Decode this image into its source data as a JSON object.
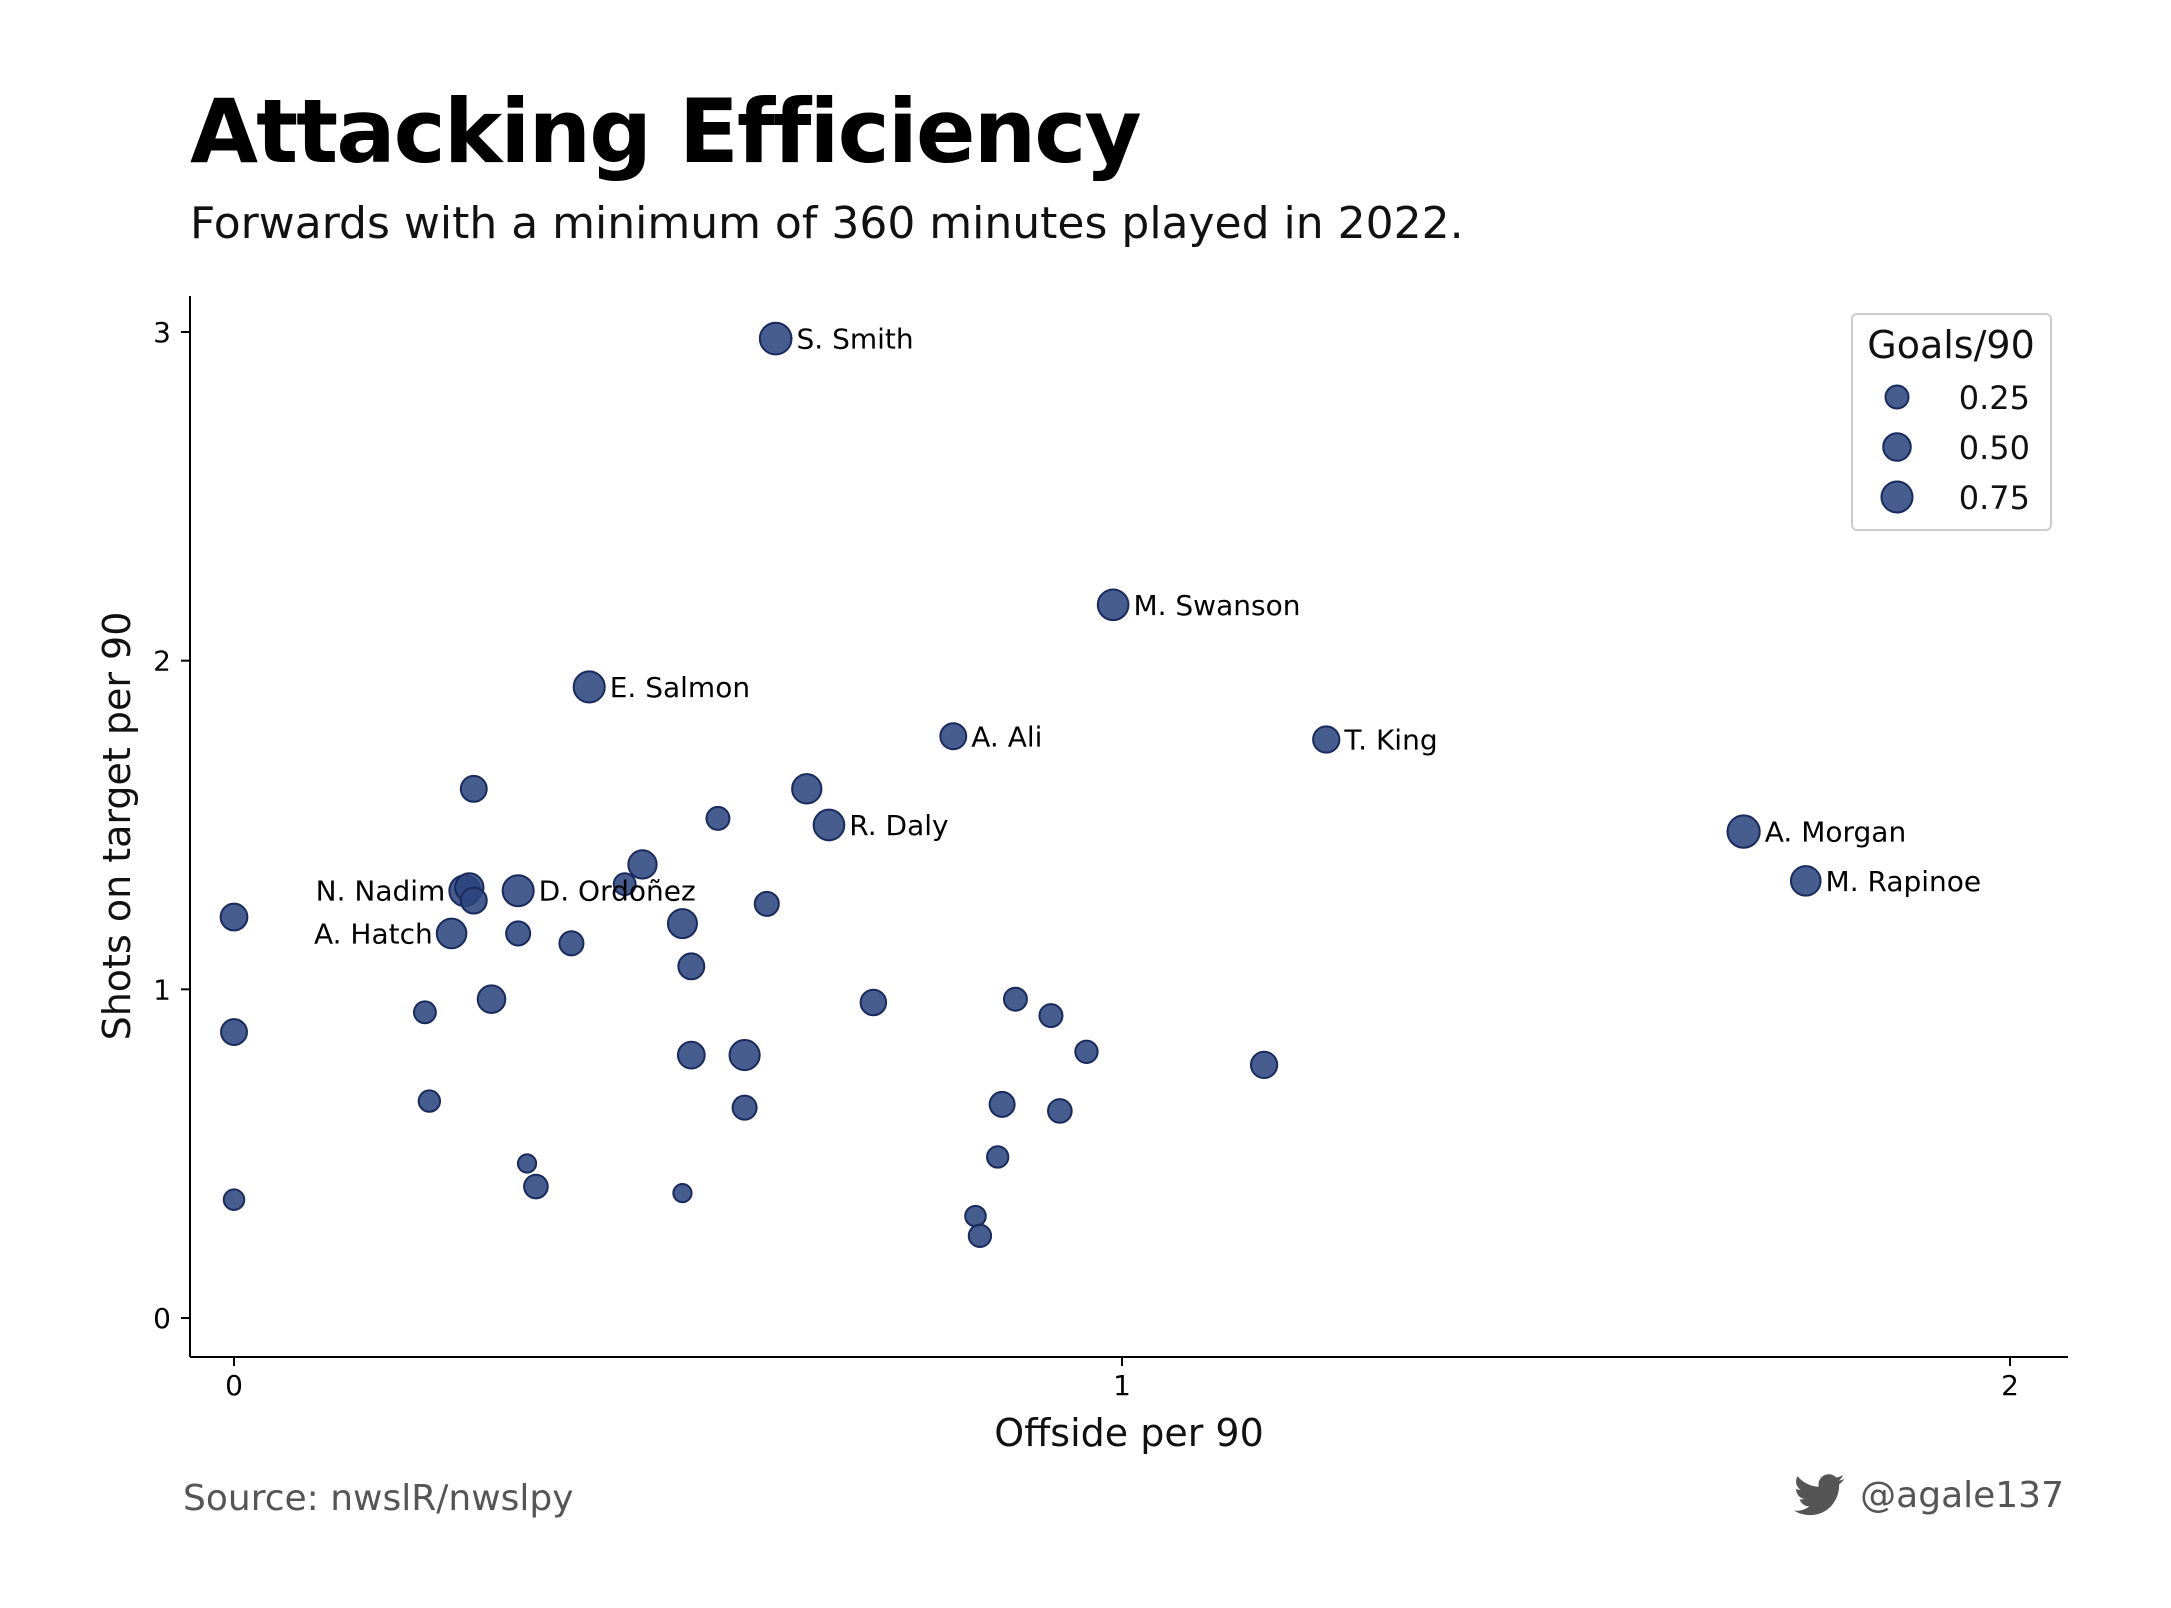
{
  "title": "Attacking Efficiency",
  "subtitle": "Forwards with a minimum of 360 minutes played in 2022.",
  "source": "Source: nwslR/nwslpy",
  "handle": "@agale137",
  "icons": {
    "footer": "twitter-bird-icon"
  },
  "colors": {
    "point_fill": "#2e4580",
    "point_stroke": "#1a2a5c",
    "text_muted": "#555555"
  },
  "chart_data": {
    "type": "scatter",
    "xlabel": "Offside per 90",
    "ylabel": "Shots on target per 90",
    "xlim": [
      -0.05,
      2.05
    ],
    "ylim": [
      -0.1,
      3.1
    ],
    "xticks": [
      0,
      1,
      2
    ],
    "yticks": [
      0,
      1,
      2,
      3
    ],
    "grid": false,
    "legend": {
      "title": "Goals/90",
      "placement": "top-right",
      "entries": [
        {
          "label": "0.25",
          "size": 0.25
        },
        {
          "label": "0.50",
          "size": 0.5
        },
        {
          "label": "0.75",
          "size": 0.75
        }
      ]
    },
    "points": [
      {
        "x": 0.61,
        "y": 2.98,
        "size": 0.8,
        "label": "S. Smith",
        "label_side": "right"
      },
      {
        "x": 0.99,
        "y": 2.17,
        "size": 0.72,
        "label": "M. Swanson",
        "label_side": "right"
      },
      {
        "x": 0.4,
        "y": 1.92,
        "size": 0.75,
        "label": "E. Salmon",
        "label_side": "right"
      },
      {
        "x": 0.81,
        "y": 1.77,
        "size": 0.4,
        "label": "A. Ali",
        "label_side": "right"
      },
      {
        "x": 1.23,
        "y": 1.76,
        "size": 0.42,
        "label": "T. King",
        "label_side": "right"
      },
      {
        "x": 0.67,
        "y": 1.5,
        "size": 0.72,
        "label": "R. Daly",
        "label_side": "right"
      },
      {
        "x": 1.7,
        "y": 1.48,
        "size": 0.85,
        "label": "A. Morgan",
        "label_side": "right"
      },
      {
        "x": 1.77,
        "y": 1.33,
        "size": 0.64,
        "label": "M. Rapinoe",
        "label_side": "right"
      },
      {
        "x": 0.32,
        "y": 1.3,
        "size": 0.75,
        "label": "D. Ordoñez",
        "label_side": "right"
      },
      {
        "x": 0.26,
        "y": 1.3,
        "size": 0.75,
        "label": "N. Nadim",
        "label_side": "left"
      },
      {
        "x": 0.245,
        "y": 1.17,
        "size": 0.64,
        "label": "A. Hatch",
        "label_side": "left"
      },
      {
        "x": 0.265,
        "y": 1.31,
        "size": 0.55,
        "label": ""
      },
      {
        "x": 0.27,
        "y": 1.61,
        "size": 0.4,
        "label": ""
      },
      {
        "x": 0.0,
        "y": 1.22,
        "size": 0.45,
        "label": ""
      },
      {
        "x": 0.0,
        "y": 0.87,
        "size": 0.4,
        "label": ""
      },
      {
        "x": 0.0,
        "y": 0.36,
        "size": 0.15,
        "label": ""
      },
      {
        "x": 0.27,
        "y": 1.27,
        "size": 0.4,
        "label": ""
      },
      {
        "x": 0.29,
        "y": 0.97,
        "size": 0.5,
        "label": ""
      },
      {
        "x": 0.215,
        "y": 0.93,
        "size": 0.2,
        "label": ""
      },
      {
        "x": 0.22,
        "y": 0.66,
        "size": 0.18,
        "label": ""
      },
      {
        "x": 0.32,
        "y": 1.17,
        "size": 0.3,
        "label": ""
      },
      {
        "x": 0.38,
        "y": 1.14,
        "size": 0.3,
        "label": ""
      },
      {
        "x": 0.33,
        "y": 0.47,
        "size": 0.08,
        "label": ""
      },
      {
        "x": 0.34,
        "y": 0.4,
        "size": 0.28,
        "label": ""
      },
      {
        "x": 0.44,
        "y": 1.32,
        "size": 0.2,
        "label": ""
      },
      {
        "x": 0.46,
        "y": 1.38,
        "size": 0.55,
        "label": ""
      },
      {
        "x": 0.505,
        "y": 1.2,
        "size": 0.6,
        "label": ""
      },
      {
        "x": 0.515,
        "y": 1.07,
        "size": 0.4,
        "label": ""
      },
      {
        "x": 0.515,
        "y": 0.8,
        "size": 0.45,
        "label": ""
      },
      {
        "x": 0.545,
        "y": 1.52,
        "size": 0.25,
        "label": ""
      },
      {
        "x": 0.6,
        "y": 1.26,
        "size": 0.3,
        "label": ""
      },
      {
        "x": 0.575,
        "y": 0.8,
        "size": 0.68,
        "label": ""
      },
      {
        "x": 0.575,
        "y": 0.64,
        "size": 0.3,
        "label": ""
      },
      {
        "x": 0.505,
        "y": 0.38,
        "size": 0.08,
        "label": ""
      },
      {
        "x": 0.645,
        "y": 1.61,
        "size": 0.62,
        "label": ""
      },
      {
        "x": 0.72,
        "y": 0.96,
        "size": 0.38,
        "label": ""
      },
      {
        "x": 0.88,
        "y": 0.97,
        "size": 0.25,
        "label": ""
      },
      {
        "x": 0.92,
        "y": 0.92,
        "size": 0.25,
        "label": ""
      },
      {
        "x": 0.96,
        "y": 0.81,
        "size": 0.22,
        "label": ""
      },
      {
        "x": 0.865,
        "y": 0.65,
        "size": 0.35,
        "label": ""
      },
      {
        "x": 0.93,
        "y": 0.63,
        "size": 0.28,
        "label": ""
      },
      {
        "x": 0.86,
        "y": 0.49,
        "size": 0.18,
        "label": ""
      },
      {
        "x": 0.835,
        "y": 0.31,
        "size": 0.15,
        "label": ""
      },
      {
        "x": 0.84,
        "y": 0.25,
        "size": 0.22,
        "label": ""
      },
      {
        "x": 1.16,
        "y": 0.77,
        "size": 0.42,
        "label": ""
      }
    ]
  }
}
